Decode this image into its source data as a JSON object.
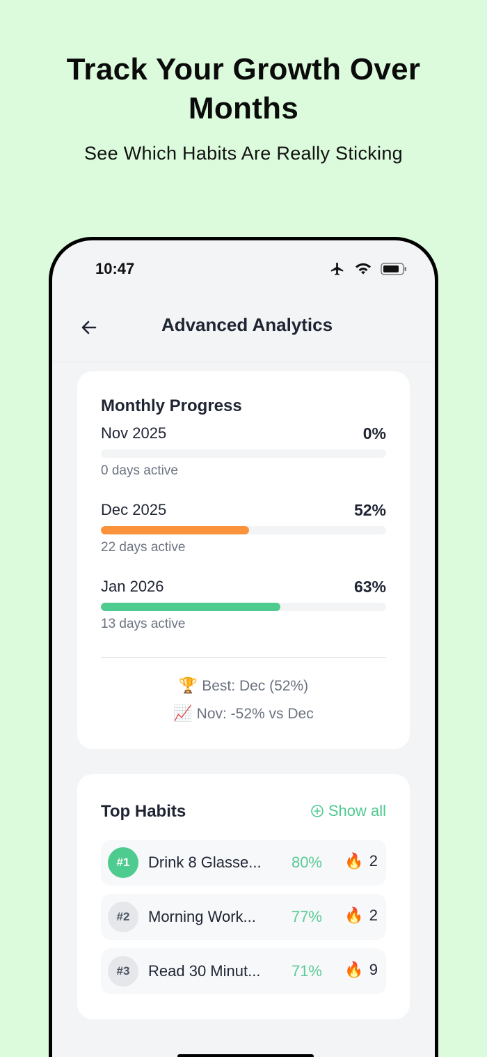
{
  "marketing": {
    "headline_line1": "Track Your Growth Over",
    "headline_line2": "Months",
    "subhead": "See Which Habits Are Really Sticking"
  },
  "status_bar": {
    "time": "10:47",
    "icons": [
      "airplane-icon",
      "wifi-icon",
      "battery-icon"
    ]
  },
  "nav": {
    "title": "Advanced Analytics",
    "back_icon": "back-arrow-icon"
  },
  "monthly_progress": {
    "title": "Monthly Progress",
    "months": [
      {
        "label": "Nov 2025",
        "percent_text": "0%",
        "percent": 0,
        "days": "0 days active",
        "color": "#f3f4f6"
      },
      {
        "label": "Dec 2025",
        "percent_text": "52%",
        "percent": 52,
        "days": "22 days active",
        "color": "#fb923c"
      },
      {
        "label": "Jan 2026",
        "percent_text": "63%",
        "percent": 63,
        "days": "13 days active",
        "color": "#4ecb8f"
      }
    ],
    "best": "Best: Dec (52%)",
    "best_icon": "🏆",
    "compare": "Nov: -52% vs Dec",
    "compare_icon": "📈"
  },
  "top_habits": {
    "title": "Top Habits",
    "show_all": "Show all",
    "habits": [
      {
        "rank": "#1",
        "name": "Drink 8 Glasse...",
        "percent": "80%",
        "streak": "2",
        "rank_bg": "#4ecb8f",
        "rank_color": "#ffffff"
      },
      {
        "rank": "#2",
        "name": "Morning Work...",
        "percent": "77%",
        "streak": "2",
        "rank_bg": "#e5e7eb",
        "rank_color": "#4b5563"
      },
      {
        "rank": "#3",
        "name": "Read 30 Minut...",
        "percent": "71%",
        "streak": "9",
        "rank_bg": "#e5e7eb",
        "rank_color": "#4b5563"
      }
    ],
    "flame_icon": "🔥"
  },
  "colors": {
    "background": "#dcfbdc",
    "accent_green": "#4ecb8f",
    "accent_orange": "#fb923c"
  }
}
